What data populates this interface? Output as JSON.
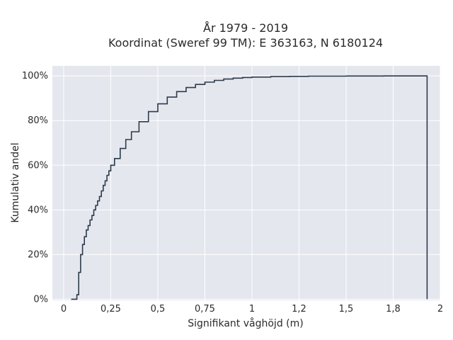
{
  "chart_data": {
    "type": "line",
    "subtype": "ecdf-step",
    "title_lines": [
      "År 1979 - 2019",
      "Koordinat (Sweref 99 TM): E 363163, N 6180124"
    ],
    "xlabel": "Signifikant våghöjd (m)",
    "ylabel": "Kumulativ andel",
    "xlim": [
      -0.06,
      2.0
    ],
    "ylim": [
      -0.005,
      1.045
    ],
    "x_ticks": [
      0,
      0.25,
      0.5,
      0.75,
      1,
      1.25,
      1.5,
      1.75,
      2
    ],
    "x_tick_labels": [
      "0",
      "0,25",
      "0,5",
      "0,75",
      "1",
      "1,2",
      "1,5",
      "1,8",
      "2"
    ],
    "y_ticks": [
      0,
      0.2,
      0.4,
      0.6,
      0.8,
      1.0
    ],
    "y_tick_labels": [
      "0%",
      "20%",
      "40%",
      "60%",
      "80%",
      "100%"
    ],
    "grid": true,
    "background_color": "#e5e7ef",
    "line_color": "#2d3b4a",
    "series": [
      {
        "x": [
          0.04,
          0.07,
          0.08,
          0.09,
          0.1,
          0.11,
          0.12,
          0.13,
          0.14,
          0.15,
          0.16,
          0.17,
          0.18,
          0.19,
          0.2,
          0.21,
          0.22,
          0.23,
          0.24,
          0.25,
          0.27,
          0.3,
          0.33,
          0.36,
          0.4,
          0.45,
          0.5,
          0.55,
          0.6,
          0.65,
          0.7,
          0.75,
          0.8,
          0.85,
          0.9,
          0.95,
          1.0,
          1.1,
          1.2,
          1.3,
          1.5,
          1.7,
          1.93,
          1.93
        ],
        "y": [
          0.0,
          0.02,
          0.12,
          0.2,
          0.245,
          0.28,
          0.31,
          0.33,
          0.355,
          0.375,
          0.4,
          0.42,
          0.44,
          0.46,
          0.485,
          0.51,
          0.53,
          0.555,
          0.575,
          0.6,
          0.63,
          0.675,
          0.715,
          0.75,
          0.795,
          0.84,
          0.875,
          0.905,
          0.93,
          0.948,
          0.962,
          0.972,
          0.98,
          0.986,
          0.99,
          0.993,
          0.995,
          0.997,
          0.998,
          0.999,
          0.9995,
          0.9999,
          1.0,
          0.0
        ]
      }
    ]
  }
}
